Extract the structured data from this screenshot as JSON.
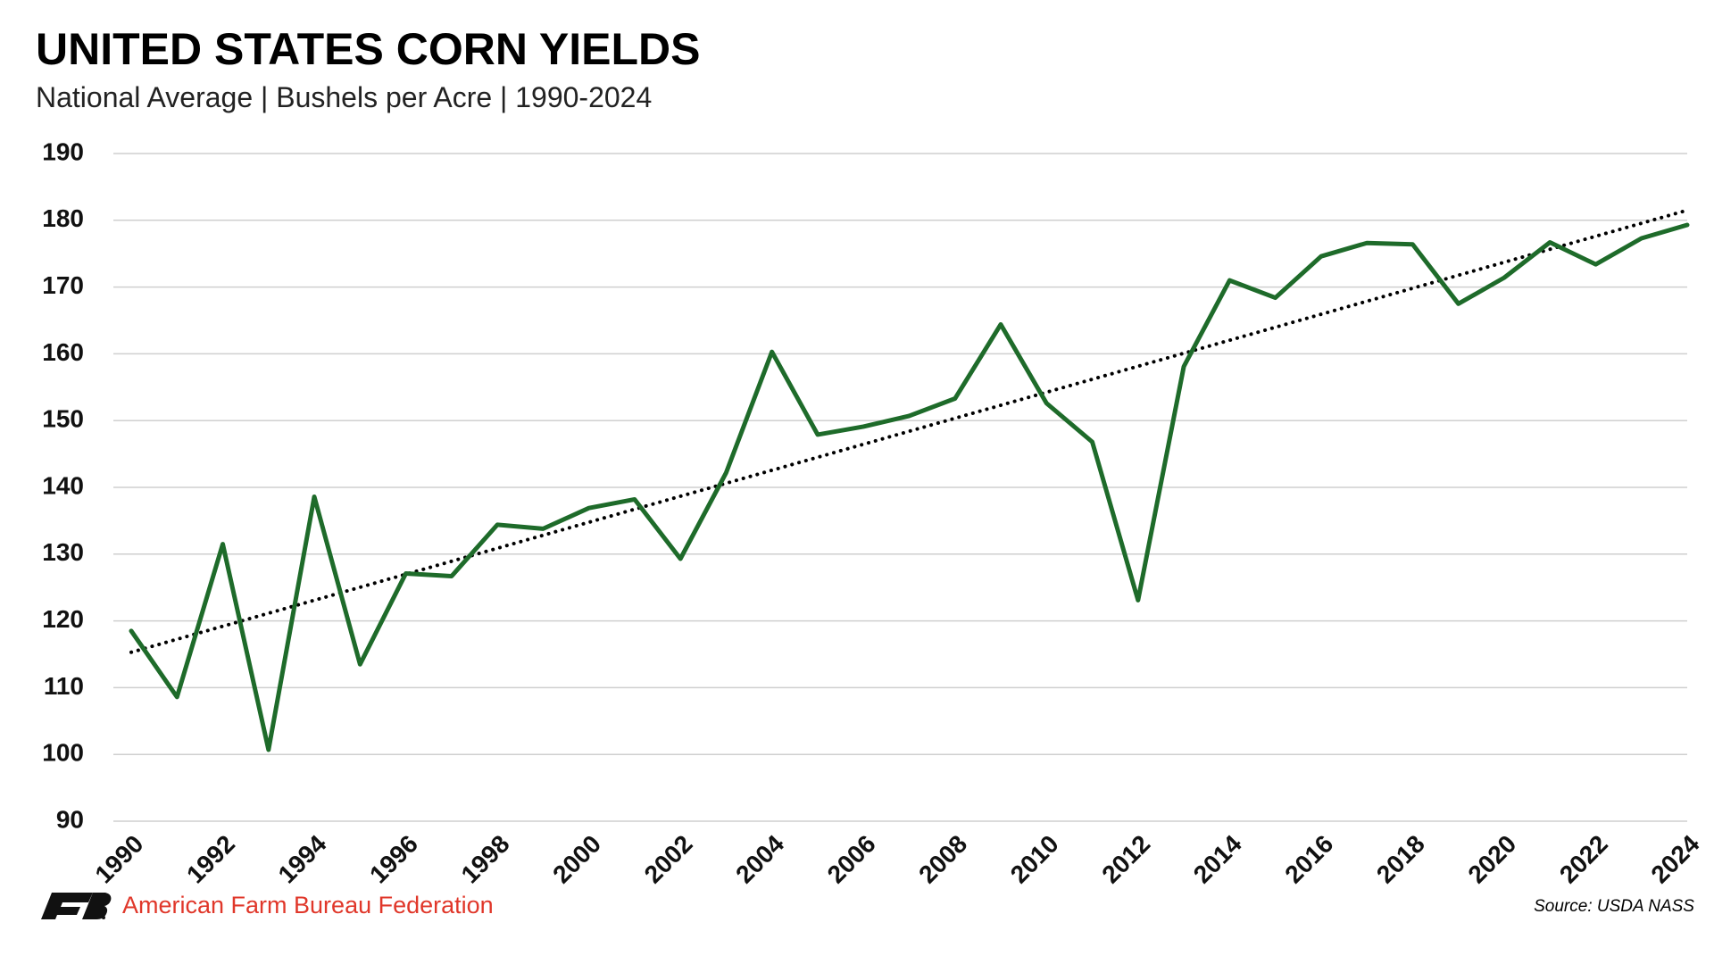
{
  "chart_data": {
    "type": "line",
    "title": "UNITED STATES CORN YIELDS",
    "subtitle": "National Average | Bushels per Acre | 1990-2024",
    "x": [
      1990,
      1991,
      1992,
      1993,
      1994,
      1995,
      1996,
      1997,
      1998,
      1999,
      2000,
      2001,
      2002,
      2003,
      2004,
      2005,
      2006,
      2007,
      2008,
      2009,
      2010,
      2011,
      2012,
      2013,
      2014,
      2015,
      2016,
      2017,
      2018,
      2019,
      2020,
      2021,
      2022,
      2023,
      2024
    ],
    "series": [
      {
        "color": "#1e6b2a",
        "values": [
          118.5,
          108.6,
          131.5,
          100.7,
          138.6,
          113.5,
          127.1,
          126.7,
          134.4,
          133.8,
          136.9,
          138.2,
          129.3,
          142.2,
          160.3,
          147.9,
          149.1,
          150.7,
          153.3,
          164.4,
          152.6,
          146.8,
          123.1,
          158.1,
          171.0,
          168.4,
          174.6,
          176.6,
          176.4,
          167.5,
          171.4,
          176.7,
          173.4,
          177.3,
          179.3
        ]
      }
    ],
    "trendline": {
      "color": "#000000",
      "x": [
        1990,
        2024
      ],
      "values": [
        115.3,
        181.5
      ]
    },
    "xlim": [
      1990,
      2024
    ],
    "xticks": [
      1990,
      1992,
      1994,
      1996,
      1998,
      2000,
      2002,
      2004,
      2006,
      2008,
      2010,
      2012,
      2014,
      2016,
      2018,
      2020,
      2022,
      2024
    ],
    "ylim": [
      90,
      190
    ],
    "yticks": [
      90,
      100,
      110,
      120,
      130,
      140,
      150,
      160,
      170,
      180,
      190
    ],
    "grid": true
  },
  "footer": {
    "organization": "American Farm Bureau Federation",
    "source": "Source: USDA NASS"
  }
}
